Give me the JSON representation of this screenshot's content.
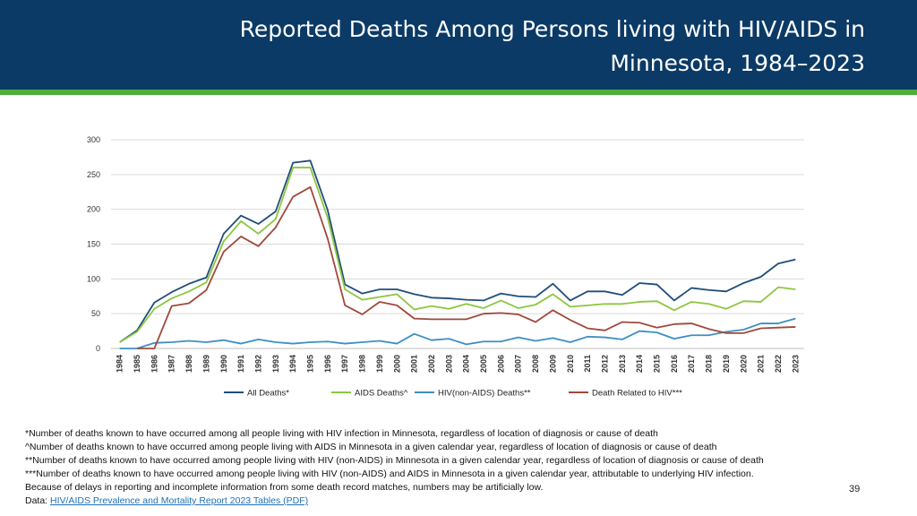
{
  "slide": {
    "title_line1": "Reported Deaths Among Persons living with HIV/AIDS in",
    "title_line2": "Minnesota, 1984–2023",
    "page_number": "39",
    "notes": [
      "*Number of deaths known to have occurred among all people living with HIV infection in Minnesota, regardless of location of diagnosis or cause of death",
      "^Number of deaths known to have occurred among people living with AIDS in Minnesota in a given calendar year, regardless of location of diagnosis or cause of death",
      "**Number of deaths known to have occurred among people living with HIV (non-AIDS) in Minnesota in a given calendar year, regardless of location of diagnosis or cause of death",
      "***Number of deaths known to have occurred among people living with HIV (non-AIDS) and AIDS in Minnesota in a given calendar year, attributable to underlying HIV infection.",
      "Because of delays in reporting and incomplete information from some death record matches, numbers may be artificially low."
    ],
    "data_prefix": "Data: ",
    "data_link": "HIV/AIDS Prevalence and Mortality Report 2023 Tables (PDF)",
    "colors": {
      "header": "#0b3a66",
      "accent_bar": "#4caf3a"
    }
  },
  "chart_data": {
    "type": "line",
    "title": "",
    "xlabel": "",
    "ylabel": "",
    "ylim": [
      0,
      300
    ],
    "yticks": [
      0,
      50,
      100,
      150,
      200,
      250,
      300
    ],
    "grid": true,
    "legend": "bottom",
    "categories": [
      "1984",
      "1985",
      "1986",
      "1987",
      "1988",
      "1989",
      "1990",
      "1991",
      "1992",
      "1993",
      "1994",
      "1995",
      "1996",
      "1997",
      "1998",
      "1999",
      "2000",
      "2001",
      "2002",
      "2003",
      "2004",
      "2005",
      "2006",
      "2007",
      "2008",
      "2009",
      "2010",
      "2011",
      "2012",
      "2013",
      "2014",
      "2015",
      "2016",
      "2017",
      "2018",
      "2019",
      "2020",
      "2021",
      "2022",
      "2023"
    ],
    "series": [
      {
        "name": "All Deaths*",
        "color": "#1f4e79",
        "values": [
          9,
          26,
          66,
          81,
          93,
          102,
          165,
          191,
          179,
          197,
          267,
          270,
          199,
          92,
          79,
          85,
          85,
          78,
          73,
          72,
          70,
          69,
          79,
          75,
          74,
          93,
          69,
          82,
          82,
          77,
          94,
          92,
          69,
          87,
          84,
          82,
          94,
          103,
          122,
          128
        ]
      },
      {
        "name": "AIDS Deaths^",
        "color": "#8dc63f",
        "values": [
          9,
          24,
          57,
          72,
          82,
          95,
          154,
          183,
          165,
          186,
          260,
          260,
          188,
          85,
          70,
          74,
          78,
          56,
          61,
          57,
          64,
          58,
          69,
          58,
          63,
          78,
          60,
          62,
          64,
          64,
          67,
          68,
          55,
          67,
          64,
          57,
          68,
          67,
          88,
          85
        ]
      },
      {
        "name": "HIV(non-AIDS) Deaths**",
        "color": "#3d8fc4",
        "values": [
          0,
          0,
          8,
          9,
          11,
          9,
          12,
          7,
          13,
          9,
          7,
          9,
          10,
          7,
          9,
          11,
          7,
          21,
          12,
          14,
          6,
          10,
          10,
          16,
          11,
          15,
          9,
          17,
          16,
          13,
          25,
          23,
          14,
          19,
          19,
          24,
          27,
          36,
          36,
          43
        ]
      },
      {
        "name": "Death Related to HIV***",
        "color": "#a0493c",
        "values": [
          null,
          0,
          0,
          61,
          65,
          84,
          139,
          161,
          147,
          174,
          218,
          232,
          158,
          62,
          49,
          67,
          62,
          43,
          42,
          42,
          42,
          50,
          51,
          49,
          38,
          55,
          41,
          29,
          26,
          38,
          37,
          30,
          35,
          36,
          28,
          22,
          22,
          29,
          30,
          31
        ]
      }
    ]
  }
}
